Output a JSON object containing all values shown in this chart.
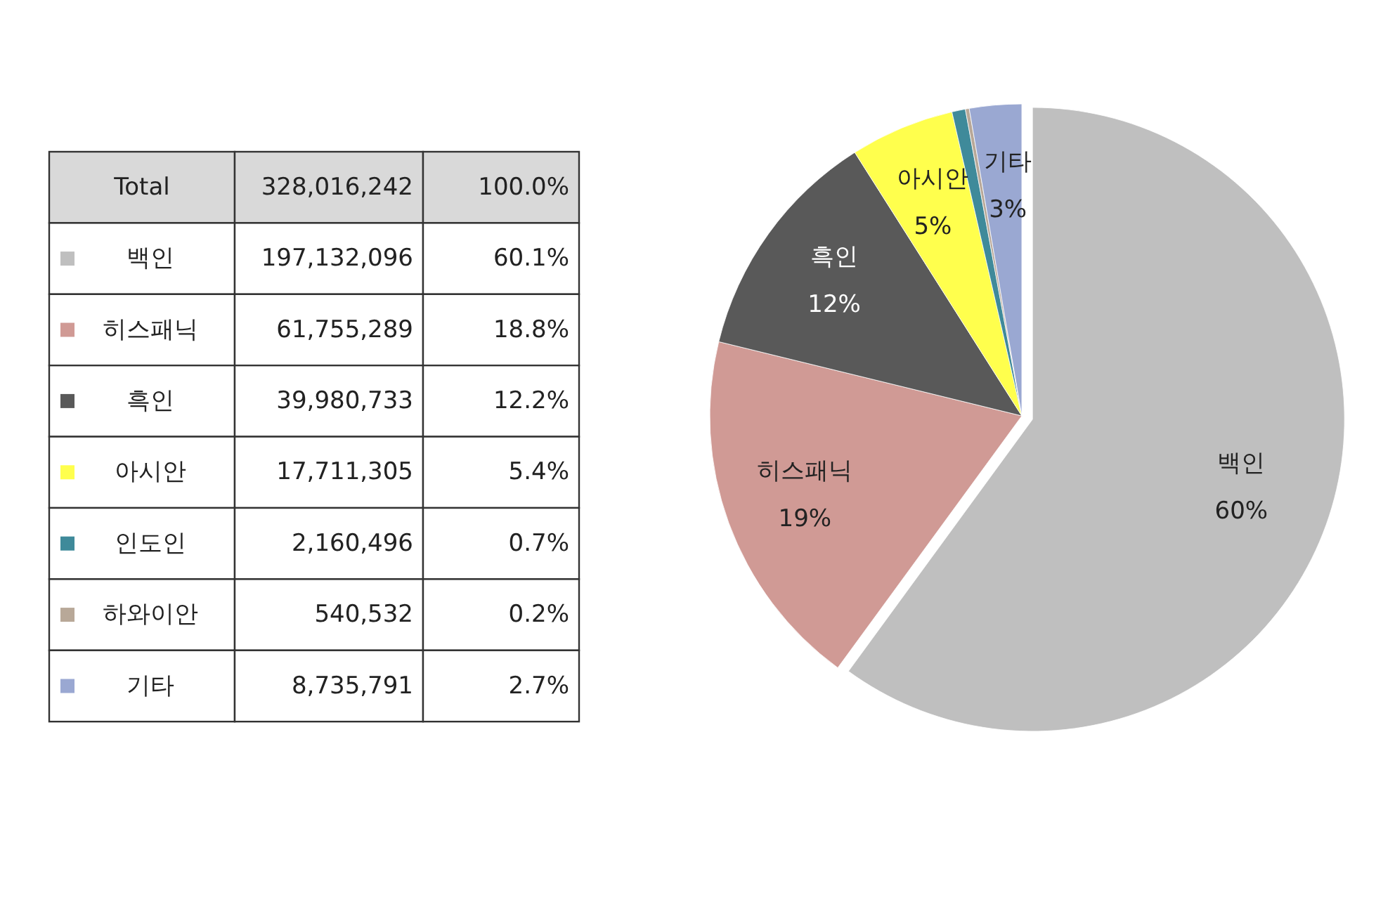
{
  "chart_data": {
    "type": "pie",
    "categories": [
      "백인",
      "히스패닉",
      "흑인",
      "아시안",
      "인도인",
      "하와이안",
      "기타"
    ],
    "values": [
      60.1,
      18.8,
      12.2,
      5.4,
      0.7,
      0.2,
      2.7
    ],
    "colors": [
      "#bfbfbf",
      "#d09a95",
      "#595959",
      "#ffff4d",
      "#3f8a9a",
      "#b8a898",
      "#9aa8d2"
    ],
    "value_labels": [
      "60%",
      "19%",
      "12%",
      "5%",
      null,
      null,
      "3%"
    ],
    "legend": "left",
    "annotations": [
      "Total",
      "328,016,242",
      "100.0%",
      "197,132,096",
      "60.1%",
      "61,755,289",
      "18.8%",
      "39,980,733",
      "12.2%",
      "17,711,305",
      "5.4%",
      "2,160,496",
      "0.7%",
      "540,532",
      "0.2%",
      "8,735,791",
      "2.7%"
    ]
  }
}
